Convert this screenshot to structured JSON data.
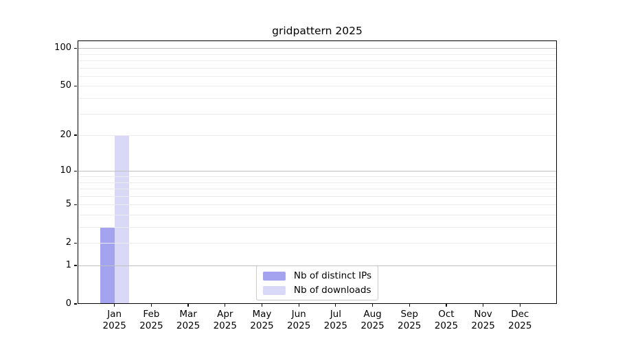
{
  "title": "gridpattern 2025",
  "legend": {
    "items": [
      {
        "label": "Nb of distinct IPs",
        "color": "#a3a3f0"
      },
      {
        "label": "Nb of downloads",
        "color": "#d9d9f7"
      }
    ]
  },
  "chart_data": {
    "type": "bar",
    "title": "gridpattern 2025",
    "xlabel": "",
    "ylabel": "",
    "categories": [
      "Jan 2025",
      "Feb 2025",
      "Mar 2025",
      "Apr 2025",
      "May 2025",
      "Jun 2025",
      "Jul 2025",
      "Aug 2025",
      "Sep 2025",
      "Oct 2025",
      "Nov 2025",
      "Dec 2025"
    ],
    "series": [
      {
        "name": "Nb of distinct IPs",
        "color": "#a3a3f0",
        "values": [
          3,
          0,
          0,
          0,
          0,
          0,
          0,
          0,
          0,
          0,
          0,
          0
        ]
      },
      {
        "name": "Nb of downloads",
        "color": "#d9d9f7",
        "values": [
          20,
          0,
          0,
          0,
          0,
          0,
          0,
          0,
          0,
          0,
          0,
          0
        ]
      }
    ],
    "y_scale": "log1p",
    "y_max": 115,
    "y_tick_values": [
      0,
      1,
      2,
      5,
      10,
      20,
      50,
      100
    ],
    "y_tick_labels": [
      "0",
      "1",
      "2",
      "5",
      "10",
      "20",
      "50",
      "100"
    ],
    "y_major_gridlines": [
      1,
      10,
      100
    ],
    "y_minor_gridlines": [
      2,
      3,
      4,
      5,
      6,
      7,
      8,
      9,
      20,
      30,
      40,
      50,
      60,
      70,
      80,
      90
    ],
    "grid": true,
    "grid_on_top_of_bars": true,
    "legend_position": "lower center"
  },
  "colors": {
    "background": "#ffffff",
    "spine": "#000000",
    "major_grid": "#c0c0c0",
    "minor_grid": "#ececec",
    "text": "#000000",
    "legend_border": "#c8c8c8"
  }
}
